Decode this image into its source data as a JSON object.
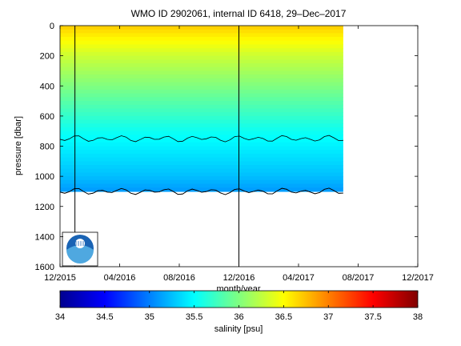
{
  "chart_data": {
    "type": "heatmap",
    "title": "WMO ID 2902061, internal ID 6418, 29–Dec–2017",
    "xlabel": "month/year",
    "ylabel": "pressure [dbar]",
    "x_tick_labels": [
      "12/2015",
      "04/2016",
      "08/2016",
      "12/2016",
      "04/2017",
      "08/2017",
      "12/2017"
    ],
    "y_tick_labels": [
      "0",
      "200",
      "400",
      "600",
      "800",
      "1000",
      "1200",
      "1400",
      "1600"
    ],
    "xlim": [
      "2015-12",
      "2017-12"
    ],
    "ylim": [
      0,
      1600
    ],
    "y_reversed": true,
    "data_extent": {
      "start": "2015-12",
      "end": "2017-07",
      "max_pressure_dbar": 1100
    },
    "vertical_markers": [
      "2016-01",
      "2016-12"
    ],
    "contour_levels_black": [
      35.5,
      35.0,
      34.5
    ],
    "salinity_by_pressure": [
      {
        "pressure": 0,
        "salinity": 36.7
      },
      {
        "pressure": 100,
        "salinity": 36.5
      },
      {
        "pressure": 200,
        "salinity": 36.3
      },
      {
        "pressure": 300,
        "salinity": 36.15
      },
      {
        "pressure": 400,
        "salinity": 36.0
      },
      {
        "pressure": 500,
        "salinity": 35.85
      },
      {
        "pressure": 600,
        "salinity": 35.7
      },
      {
        "pressure": 700,
        "salinity": 35.55
      },
      {
        "pressure": 800,
        "salinity": 35.45
      },
      {
        "pressure": 900,
        "salinity": 35.35
      },
      {
        "pressure": 1000,
        "salinity": 35.25
      },
      {
        "pressure": 1100,
        "salinity": 35.1
      }
    ],
    "colorbar": {
      "label": "salinity [psu]",
      "range": [
        34,
        38
      ],
      "tick_labels": [
        "34",
        "34.5",
        "35",
        "35.5",
        "36",
        "36.5",
        "37",
        "37.5",
        "38"
      ],
      "colormap": "jet"
    },
    "logo": "NOAA",
    "grid": false
  }
}
